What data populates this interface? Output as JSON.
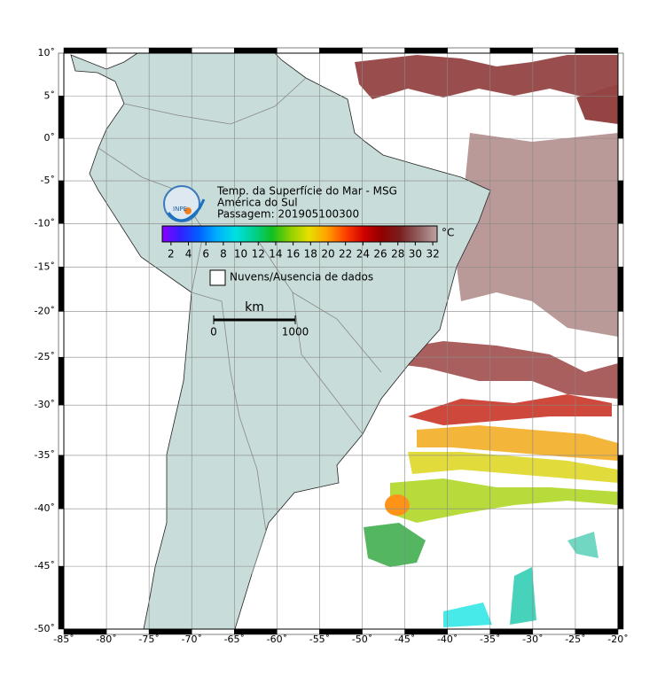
{
  "map": {
    "title": "Temp. da Superfície do Mar - MSG",
    "region": "América do Sul",
    "pass": "Passagem: 201905100300",
    "logo": "INPE",
    "lonlim": [
      -85,
      -20
    ],
    "latlim": [
      -50,
      10
    ],
    "lon_ticks": [
      {
        "value": -85,
        "label": "-85˚"
      },
      {
        "value": -80,
        "label": "-80˚"
      },
      {
        "value": -75,
        "label": "-75˚"
      },
      {
        "value": -70,
        "label": "-70˚"
      },
      {
        "value": -65,
        "label": "-65˚"
      },
      {
        "value": -60,
        "label": "-60˚"
      },
      {
        "value": -55,
        "label": "-55˚"
      },
      {
        "value": -50,
        "label": "-50˚"
      },
      {
        "value": -45,
        "label": "-45˚"
      },
      {
        "value": -40,
        "label": "-40˚"
      },
      {
        "value": -35,
        "label": "-35˚"
      },
      {
        "value": -30,
        "label": "-30˚"
      },
      {
        "value": -25,
        "label": "-25˚"
      },
      {
        "value": -20,
        "label": "-20˚"
      }
    ],
    "lat_ticks": [
      {
        "value": 10,
        "label": "10˚"
      },
      {
        "value": 5,
        "label": "5˚"
      },
      {
        "value": 0,
        "label": "0˚"
      },
      {
        "value": -5,
        "label": "-5˚"
      },
      {
        "value": -10,
        "label": "-10˚"
      },
      {
        "value": -15,
        "label": "-15˚"
      },
      {
        "value": -20,
        "label": "-20˚"
      },
      {
        "value": -25,
        "label": "-25˚"
      },
      {
        "value": -30,
        "label": "-30˚"
      },
      {
        "value": -35,
        "label": "-35˚"
      },
      {
        "value": -40,
        "label": "-40˚"
      },
      {
        "value": -45,
        "label": "-45˚"
      },
      {
        "value": -50,
        "label": "-50˚"
      }
    ],
    "colorbar": {
      "unit": "°C",
      "lim": [
        1,
        32.5
      ],
      "ticks": [
        2,
        4,
        6,
        8,
        10,
        12,
        14,
        16,
        18,
        20,
        22,
        24,
        26,
        28,
        30,
        32
      ],
      "colors": [
        "#8a00ff",
        "#3020ff",
        "#0060ff",
        "#00b0ff",
        "#00e0e0",
        "#00d090",
        "#10c020",
        "#90d000",
        "#e8e000",
        "#ffa000",
        "#ff4000",
        "#d00000",
        "#900000",
        "#7a2020",
        "#906060",
        "#c0a0a0"
      ]
    },
    "legend": "Nuvens/Ausencia de dados",
    "scale": {
      "unit": "km",
      "ticks": [
        0,
        1000
      ]
    }
  }
}
